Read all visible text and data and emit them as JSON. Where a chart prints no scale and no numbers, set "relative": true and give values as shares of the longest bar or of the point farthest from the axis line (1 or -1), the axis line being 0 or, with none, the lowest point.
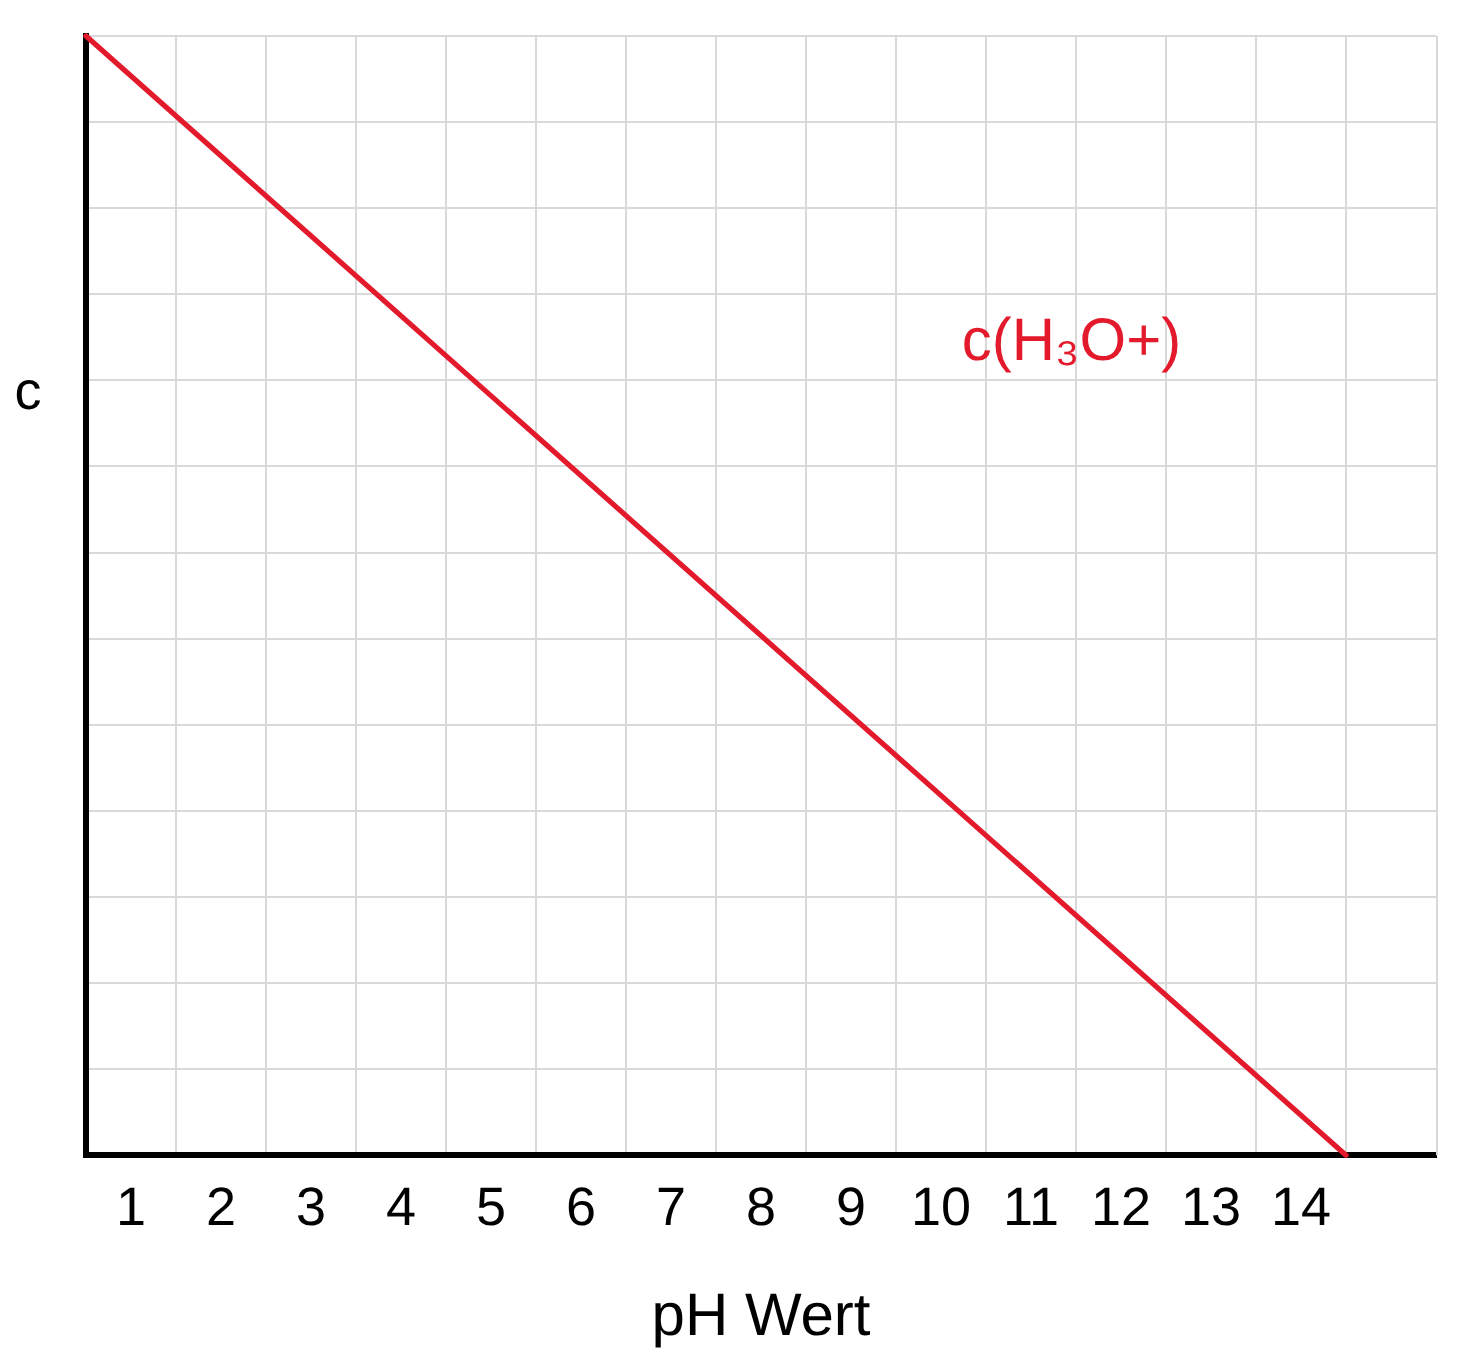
{
  "chart_data": {
    "type": "line",
    "xlabel": "pH Wert",
    "ylabel": "c",
    "relative": true,
    "xlim": [
      0.5,
      15.5
    ],
    "xticks": [
      1,
      2,
      3,
      4,
      5,
      6,
      7,
      8,
      9,
      10,
      11,
      12,
      13,
      14
    ],
    "grid": true,
    "legend": false,
    "marker": "none",
    "line_style": "solid",
    "series": [
      {
        "name": "c(H₃O+)",
        "color": "#e31a2c",
        "x": [
          0.5,
          14.5
        ],
        "values": [
          1,
          0
        ]
      }
    ]
  }
}
